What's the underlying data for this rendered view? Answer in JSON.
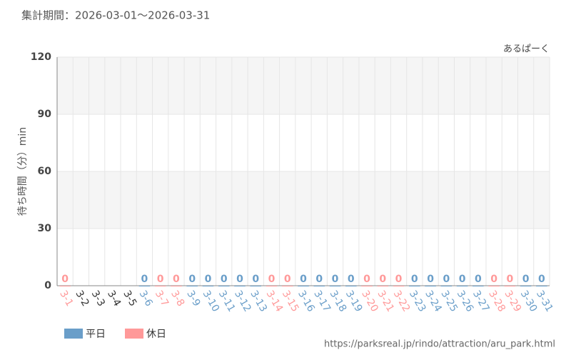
{
  "chart_data": {
    "type": "bar",
    "title": "集計期間：2026-03-01～2026-03-31",
    "subtitle": "あるぱーく",
    "y_label": "待ち時間（分）min",
    "source": "https://parksreal.jp/rindo/attraction/aru_park.html",
    "categories": [
      "3-1",
      "3-2",
      "3-3",
      "3-4",
      "3-5",
      "3-6",
      "3-7",
      "3-8",
      "3-9",
      "3-10",
      "3-11",
      "3-12",
      "3-13",
      "3-14",
      "3-15",
      "3-16",
      "3-17",
      "3-18",
      "3-19",
      "3-20",
      "3-21",
      "3-22",
      "3-23",
      "3-24",
      "3-25",
      "3-26",
      "3-27",
      "3-28",
      "3-29",
      "3-30",
      "3-31"
    ],
    "series": [
      {
        "name": "平日",
        "color": "#6a9ec9",
        "values": [
          null,
          null,
          null,
          null,
          null,
          0,
          null,
          null,
          0,
          0,
          0,
          0,
          0,
          null,
          null,
          0,
          0,
          0,
          0,
          null,
          null,
          null,
          0,
          0,
          0,
          0,
          0,
          null,
          null,
          0,
          0
        ]
      },
      {
        "name": "休日",
        "color": "#ff9999",
        "values": [
          0,
          null,
          null,
          null,
          null,
          null,
          0,
          0,
          null,
          null,
          null,
          null,
          null,
          0,
          0,
          null,
          null,
          null,
          null,
          0,
          0,
          0,
          null,
          null,
          null,
          null,
          null,
          0,
          0,
          null,
          null
        ]
      }
    ],
    "ylim": [
      0,
      120
    ],
    "yticks": [
      0,
      30,
      60,
      90,
      120
    ],
    "grid": true
  }
}
